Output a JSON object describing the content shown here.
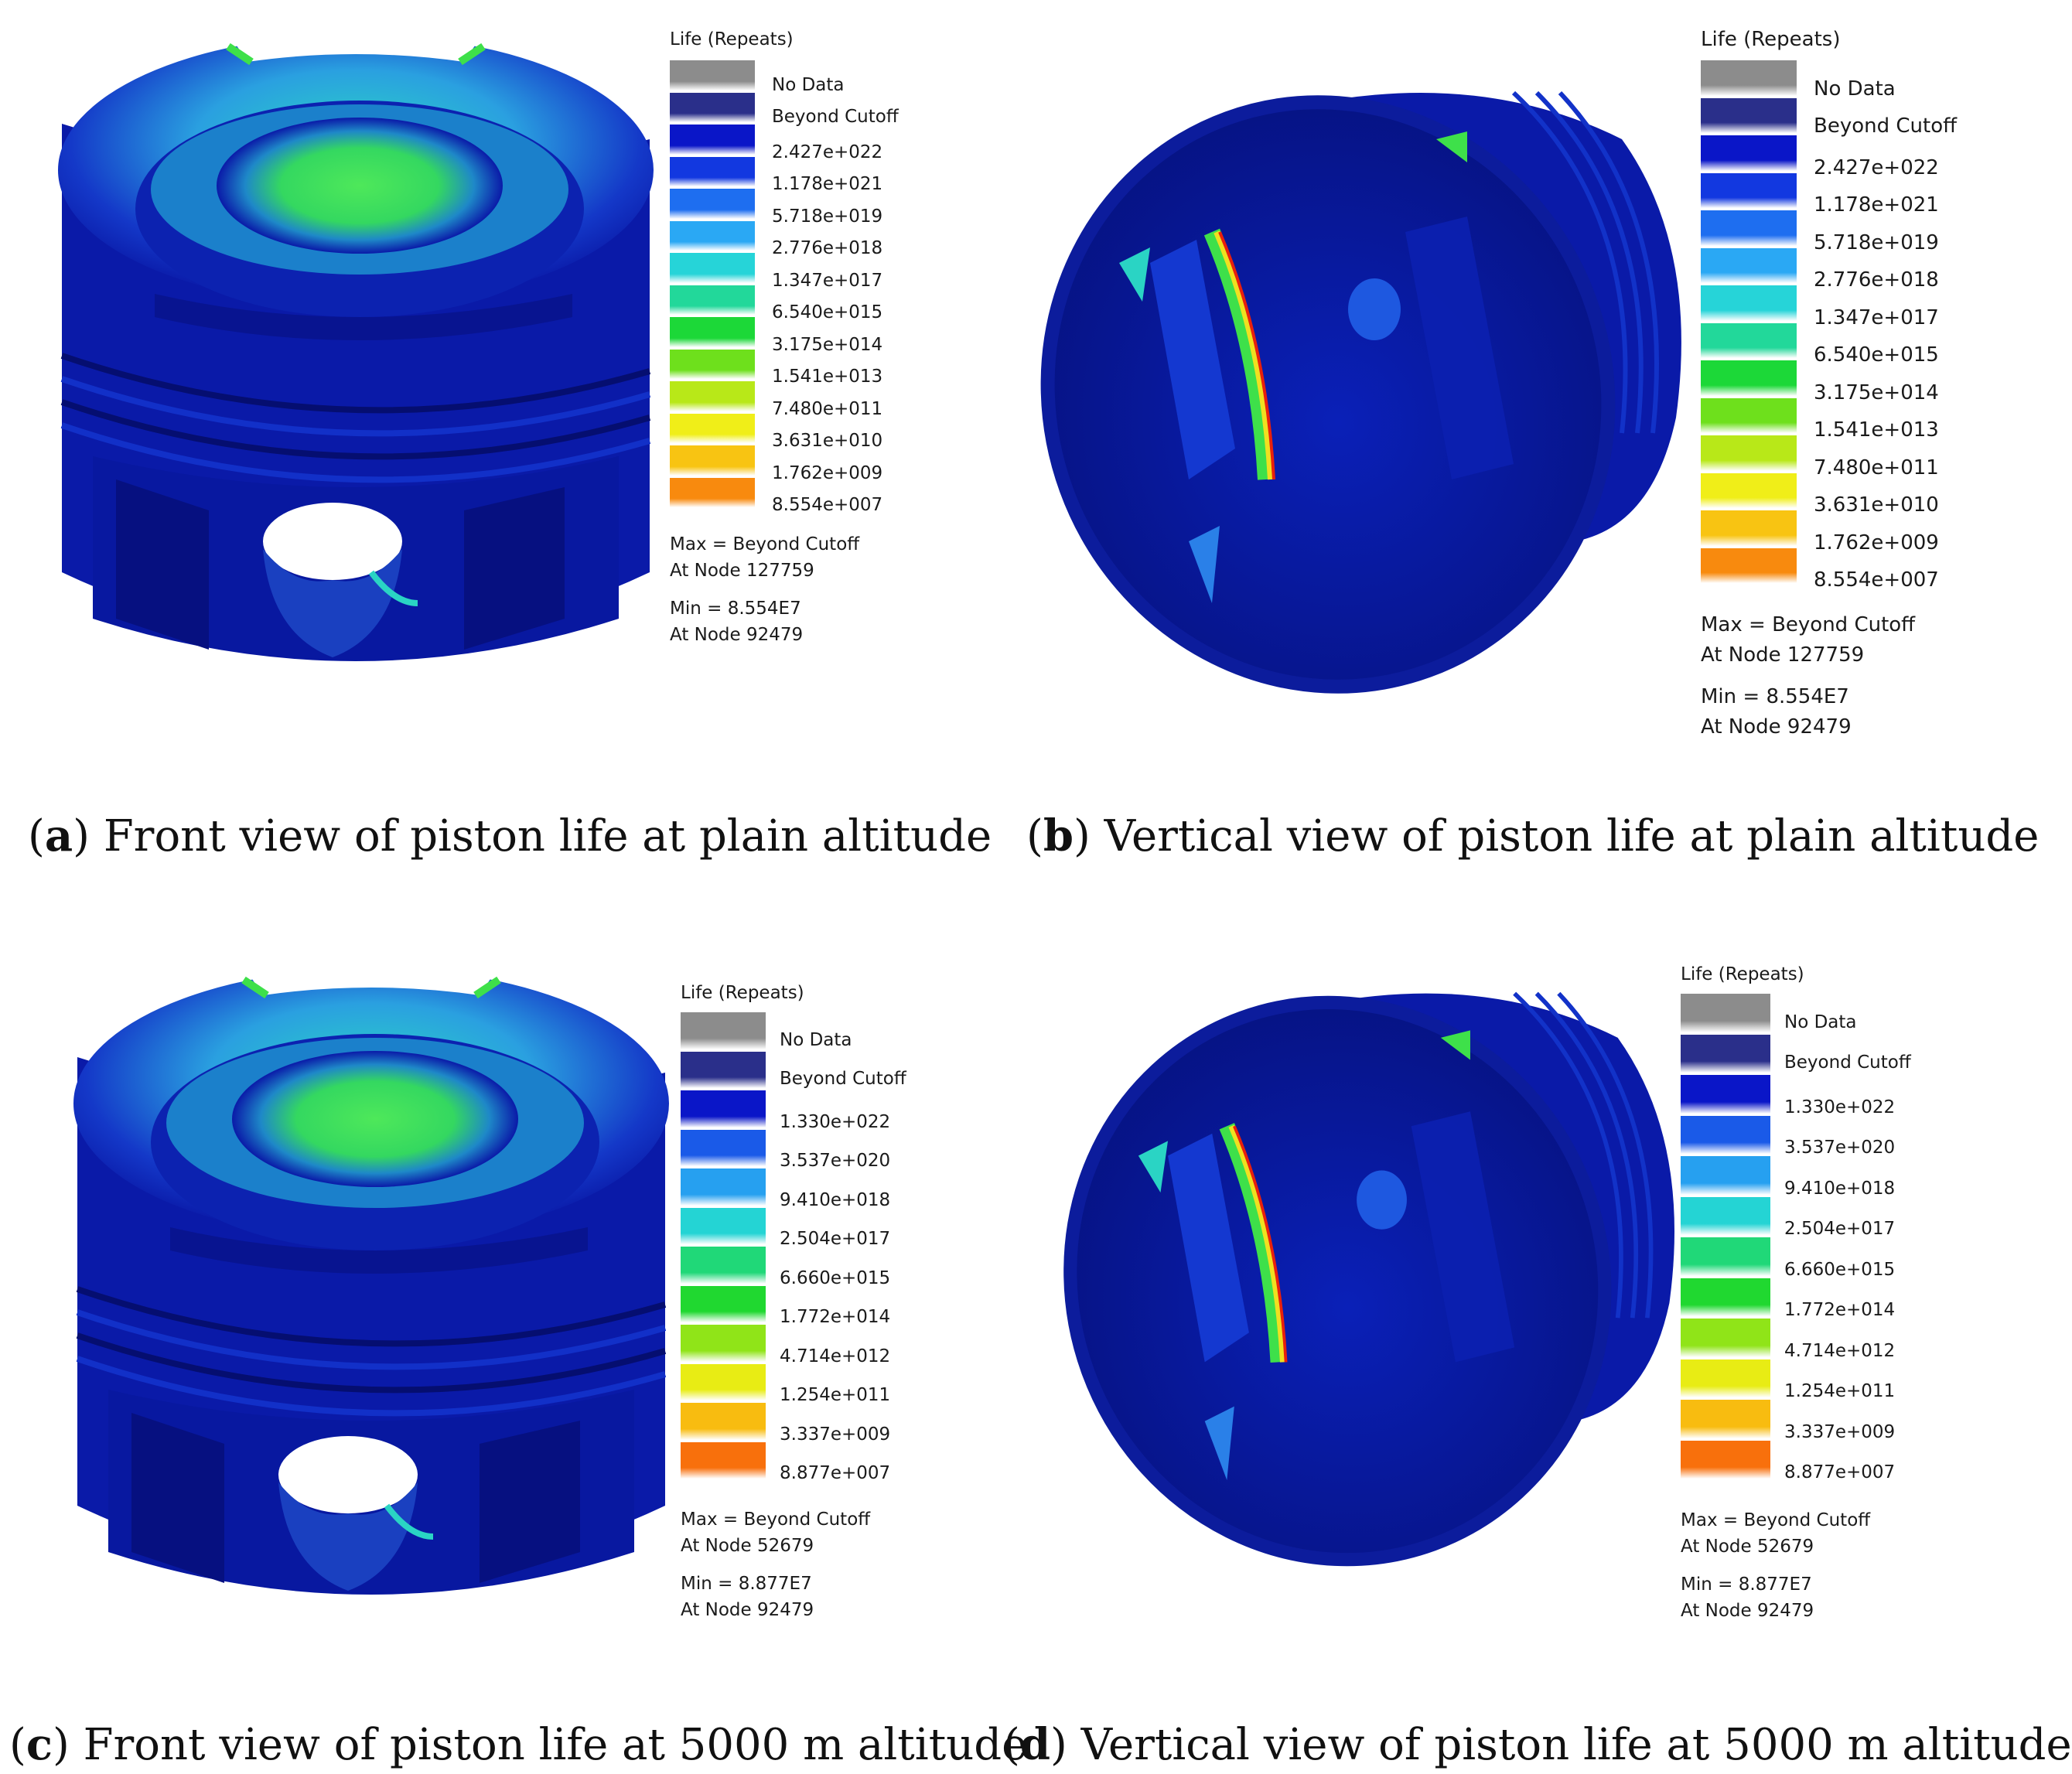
{
  "panels": [
    {
      "id": "a",
      "view": "front",
      "legend": {
        "title": "Life (Repeats)",
        "labels": [
          "No Data",
          "Beyond Cutoff",
          "2.427e+022",
          "1.178e+021",
          "5.718e+019",
          "2.776e+018",
          "1.347e+017",
          "6.540e+015",
          "3.175e+014",
          "1.541e+013",
          "7.480e+011",
          "3.631e+010",
          "1.762e+009",
          "8.554e+007"
        ],
        "max_line": "Max = Beyond Cutoff",
        "max_node": "At Node 127759",
        "min_line": "Min = 8.554E7",
        "min_node": "At Node 92479"
      },
      "caption": {
        "letter": "a",
        "text": "Front view of piston life at plain altitude"
      }
    },
    {
      "id": "b",
      "view": "vertical",
      "legend": {
        "title": "Life (Repeats)",
        "labels": [
          "No Data",
          "Beyond Cutoff",
          "2.427e+022",
          "1.178e+021",
          "5.718e+019",
          "2.776e+018",
          "1.347e+017",
          "6.540e+015",
          "3.175e+014",
          "1.541e+013",
          "7.480e+011",
          "3.631e+010",
          "1.762e+009",
          "8.554e+007"
        ],
        "max_line": "Max = Beyond Cutoff",
        "max_node": "At Node 127759",
        "min_line": "Min = 8.554E7",
        "min_node": "At Node 92479"
      },
      "caption": {
        "letter": "b",
        "text": "Vertical view of piston life at plain altitude"
      }
    },
    {
      "id": "c",
      "view": "front",
      "legend": {
        "title": "Life (Repeats)",
        "labels": [
          "No Data",
          "Beyond Cutoff",
          "1.330e+022",
          "3.537e+020",
          "9.410e+018",
          "2.504e+017",
          "6.660e+015",
          "1.772e+014",
          "4.714e+012",
          "1.254e+011",
          "3.337e+009",
          "8.877e+007"
        ],
        "max_line": "Max = Beyond Cutoff",
        "max_node": "At Node 52679",
        "min_line": "Min = 8.877E7",
        "min_node": "At Node 92479"
      },
      "caption": {
        "letter": "c",
        "text": "Front view of piston life at 5000 m altitude"
      }
    },
    {
      "id": "d",
      "view": "vertical",
      "legend": {
        "title": "Life (Repeats)",
        "labels": [
          "No Data",
          "Beyond Cutoff",
          "1.330e+022",
          "3.537e+020",
          "9.410e+018",
          "2.504e+017",
          "6.660e+015",
          "1.772e+014",
          "4.714e+012",
          "1.254e+011",
          "3.337e+009",
          "8.877e+007"
        ],
        "max_line": "Max = Beyond Cutoff",
        "max_node": "At Node 52679",
        "min_line": "Min = 8.877E7",
        "min_node": "At Node 92479"
      },
      "caption": {
        "letter": "d",
        "text": "Vertical view of piston life at 5000 m altitude"
      }
    }
  ],
  "colors": {
    "no_data": "#8c8c8c",
    "beyond_cutoff": "#2a2f8a",
    "ramp_14": [
      "#0a16c8",
      "#1238e0",
      "#1e6ef0",
      "#2aa8f4",
      "#26d4d8",
      "#22d89a",
      "#1cd838",
      "#6ee01c",
      "#b8e818",
      "#f0ee18",
      "#f8c412",
      "#f88a0e",
      "#f03a0a",
      "#e81608"
    ],
    "ramp_12": [
      "#0a16c8",
      "#1a5ae8",
      "#26a0f0",
      "#24d4d4",
      "#20d878",
      "#20d830",
      "#90e418",
      "#e8ec14",
      "#f8bc10",
      "#f8700c",
      "#f02a08",
      "#e81608"
    ],
    "piston_body": "#0a1aa8",
    "piston_dark": "#061080",
    "hot_green": "#3ee04a",
    "hot_cyan": "#2ad4c4",
    "hot_red": "#e8200c"
  }
}
